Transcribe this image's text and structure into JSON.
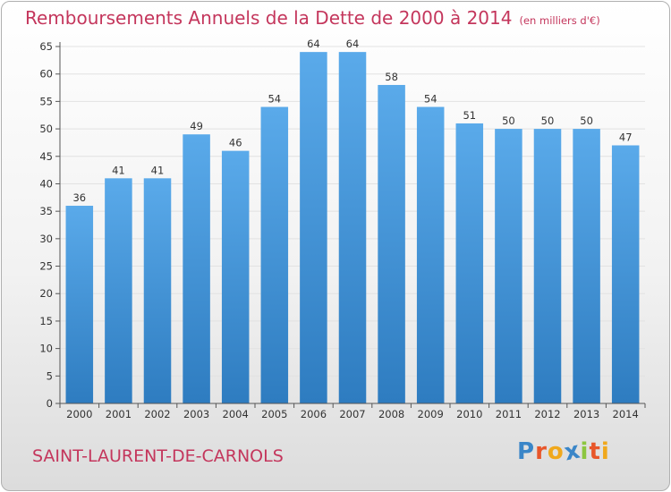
{
  "title": "Remboursements Annuels de la Dette de 2000 à 2014",
  "unit": "(en milliers d'€)",
  "commune": "SAINT-LAURENT-DE-CARNOLS",
  "logo": {
    "letters": [
      "P",
      "r",
      "o",
      "x",
      "i",
      "t",
      "i"
    ],
    "colors": [
      "#3a86c8",
      "#e8562a",
      "#f0a81c",
      "#3a86c8",
      "#8cc63f",
      "#e8562a",
      "#f0a81c"
    ]
  },
  "colors": {
    "title": "#c4365c",
    "bar_top": "#5aaaea",
    "bar_bottom": "#2e7cc0",
    "axis": "#555555"
  },
  "chart_data": {
    "type": "bar",
    "categories": [
      "2000",
      "2001",
      "2002",
      "2003",
      "2004",
      "2005",
      "2006",
      "2007",
      "2008",
      "2009",
      "2010",
      "2011",
      "2012",
      "2013",
      "2014"
    ],
    "values": [
      36,
      41,
      41,
      49,
      46,
      54,
      64,
      64,
      58,
      54,
      51,
      50,
      50,
      50,
      47
    ],
    "ylim": [
      0,
      65
    ],
    "yticks": [
      0,
      5,
      10,
      15,
      20,
      25,
      30,
      35,
      40,
      45,
      50,
      55,
      60,
      65
    ],
    "grid": true,
    "legend": "none"
  }
}
